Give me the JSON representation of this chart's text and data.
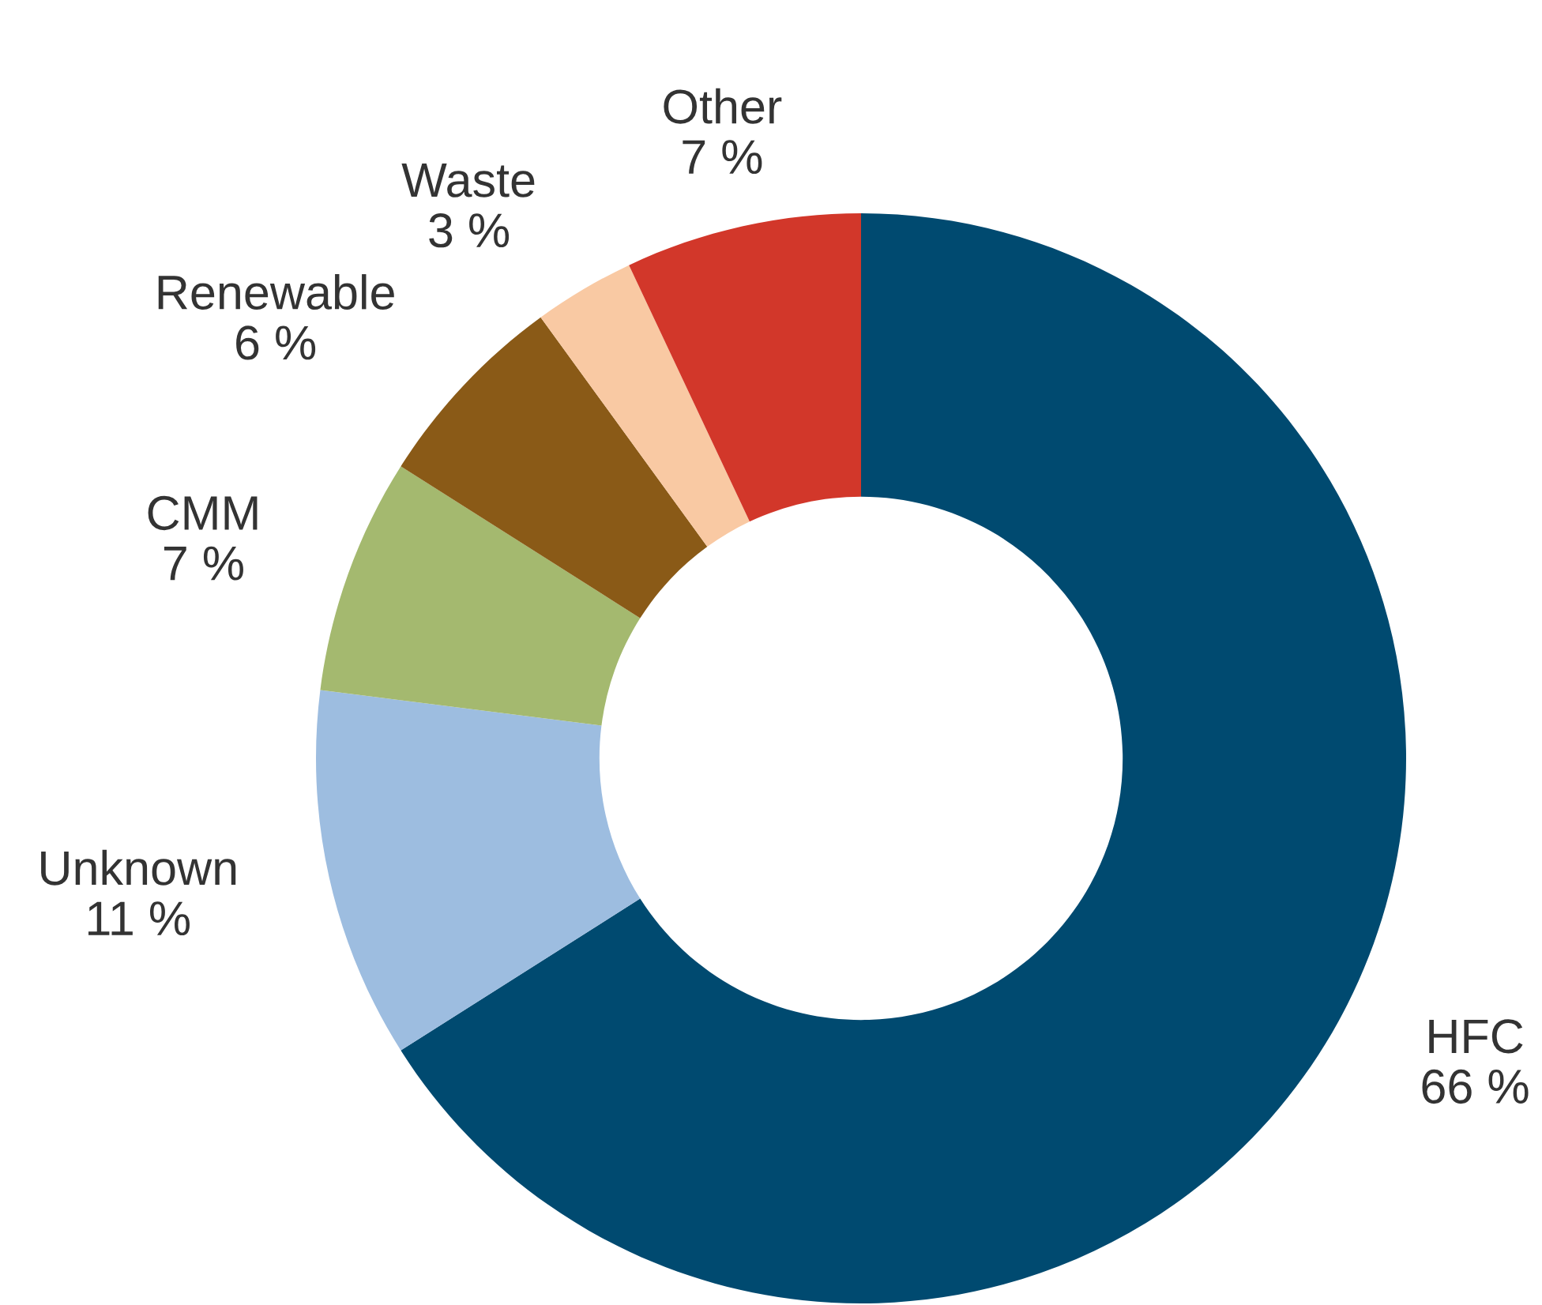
{
  "chart_data": {
    "type": "donut",
    "categories": [
      "HFC",
      "Unknown",
      "CMM",
      "Renewable",
      "Waste",
      "Other"
    ],
    "values": [
      66,
      11,
      7,
      6,
      3,
      7
    ],
    "value_labels": [
      "66 %",
      "11 %",
      "7 %",
      "6 %",
      "3 %",
      "7 %"
    ],
    "colors": [
      "#004a70",
      "#9dbde0",
      "#a4b96f",
      "#8a5a17",
      "#f9c9a3",
      "#d2372a"
    ],
    "legend": false
  }
}
